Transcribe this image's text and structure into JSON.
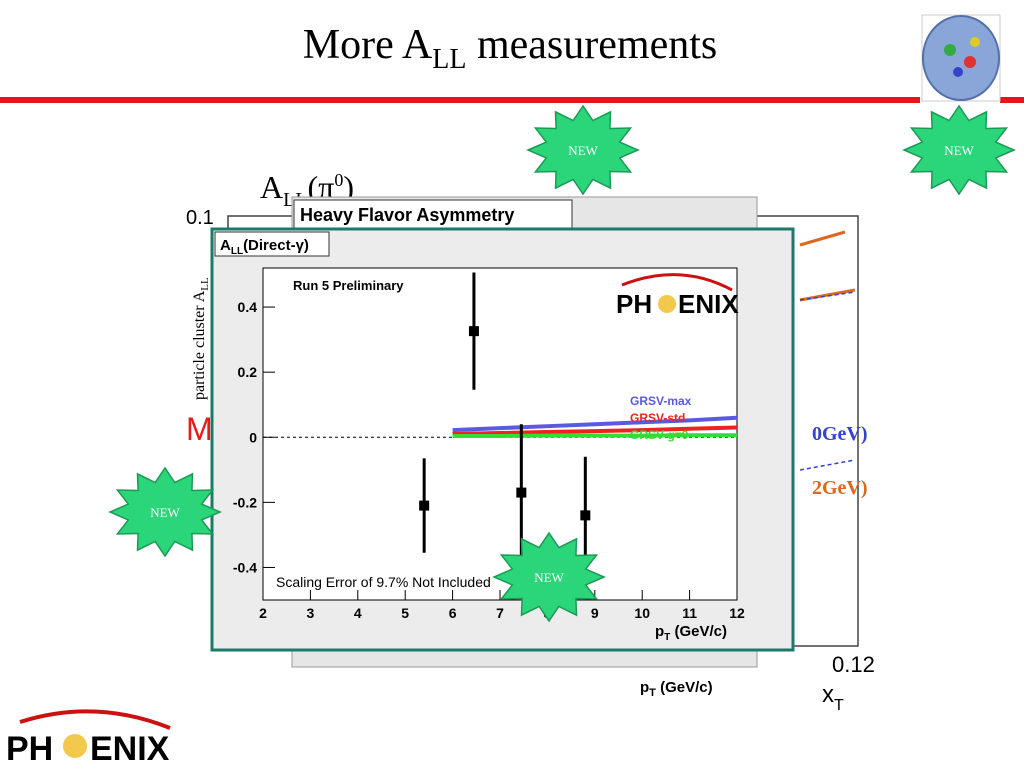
{
  "slide": {
    "title": "More A",
    "title_sub": "LL",
    "title_rest": " measurements",
    "badges": [
      "NEW",
      "NEW",
      "NEW",
      "NEW"
    ],
    "background": {
      "panel_title": "Heavy Flavor Asymmetry",
      "pi0_label": "A",
      "pi0_sub": "LL",
      "pi0_rest": "(π",
      "pi0_sup": "0",
      "pi0_end": ")",
      "y_top": "0.1",
      "x_end": "0.12",
      "x_axis": "x",
      "x_axis_sub": "T",
      "x_label": "p",
      "x_label_sub": "T",
      "x_label_rest": " (GeV/c)",
      "y_label": "particle cluster A",
      "y_label_sub": "LL"
    },
    "logo": {
      "left": "PH",
      "right": "ENIX"
    }
  },
  "chart_data": {
    "type": "errorbar",
    "title": "A",
    "title_sub": "LL",
    "title_rest": "(Direct-γ)",
    "annotation": "Run 5 Preliminary",
    "note": "Scaling Error of 9.7% Not Included",
    "logo_left": "PH",
    "logo_right": "ENIX",
    "x_label": "p",
    "x_label_sub": "T",
    "x_label_rest": " (GeV/c)",
    "xlim": [
      2,
      12
    ],
    "xticks": [
      2,
      3,
      4,
      5,
      6,
      7,
      8,
      9,
      10,
      11,
      12
    ],
    "ylim": [
      -0.5,
      0.52
    ],
    "yticks": [
      -0.4,
      -0.2,
      0,
      0.2,
      0.4
    ],
    "zero_line": true,
    "points": {
      "color": "#000000",
      "x": [
        5.4,
        6.45,
        7.45,
        8.8
      ],
      "values": [
        -0.21,
        0.326,
        -0.17,
        -0.24
      ],
      "errors": [
        0.145,
        0.18,
        0.21,
        0.18
      ]
    },
    "series": [
      {
        "name": "GRSV-max",
        "color": "#5a5ae0",
        "x": [
          6,
          7,
          8,
          9,
          10,
          11,
          12
        ],
        "values": [
          0.022,
          0.028,
          0.034,
          0.04,
          0.046,
          0.052,
          0.06
        ]
      },
      {
        "name": "GRSV-std",
        "color": "#ee2222",
        "x": [
          6,
          7,
          8,
          9,
          10,
          11,
          12
        ],
        "values": [
          0.01,
          0.013,
          0.016,
          0.019,
          0.022,
          0.026,
          0.03
        ]
      },
      {
        "name": "GRSV g=0",
        "color": "#33dd33",
        "x": [
          6,
          7,
          8,
          9,
          10,
          11,
          12
        ],
        "values": [
          0.004,
          0.004,
          0.005,
          0.005,
          0.005,
          0.006,
          0.006
        ]
      }
    ]
  }
}
